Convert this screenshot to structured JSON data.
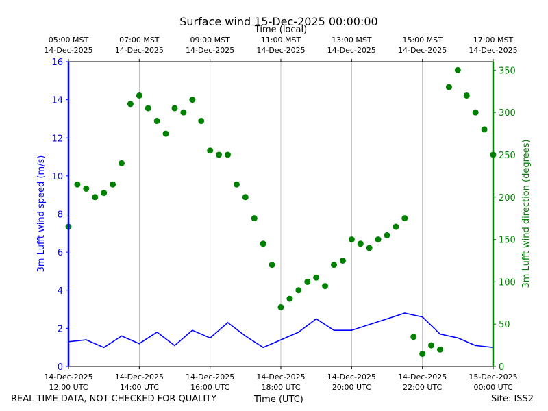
{
  "chart_data": {
    "type": "line+scatter",
    "title": "Surface wind 15-Dec-2025 00:00:00",
    "top_axis_label": "Time (local)",
    "xlabel": "Time (UTC)",
    "ylabel_left": "3m Lufft wind speed (m/s)",
    "ylabel_right": "3m Lufft wind direction (degrees)",
    "colors": {
      "speed": "#0000ff",
      "direction": "#008000",
      "grid": "#b0b0b0"
    },
    "x_unit": "hours since 14-Dec-2025 12:00 UTC",
    "xlim": [
      0,
      12
    ],
    "ylim_left": [
      0,
      16
    ],
    "ylim_right": [
      0,
      360
    ],
    "yticks_left": [
      "0",
      "2",
      "4",
      "6",
      "8",
      "10",
      "12",
      "14",
      "16"
    ],
    "yticks_right": [
      "0",
      "50",
      "100",
      "150",
      "200",
      "250",
      "300",
      "350"
    ],
    "bottom_ticks": [
      {
        "date": "14-Dec-2025",
        "time": "12:00 UTC"
      },
      {
        "date": "14-Dec-2025",
        "time": "14:00 UTC"
      },
      {
        "date": "14-Dec-2025",
        "time": "16:00 UTC"
      },
      {
        "date": "14-Dec-2025",
        "time": "18:00 UTC"
      },
      {
        "date": "14-Dec-2025",
        "time": "20:00 UTC"
      },
      {
        "date": "14-Dec-2025",
        "time": "22:00 UTC"
      },
      {
        "date": "15-Dec-2025",
        "time": "00:00 UTC"
      }
    ],
    "top_ticks": [
      {
        "time": "05:00 MST",
        "date": "14-Dec-2025"
      },
      {
        "time": "07:00 MST",
        "date": "14-Dec-2025"
      },
      {
        "time": "09:00 MST",
        "date": "14-Dec-2025"
      },
      {
        "time": "11:00 MST",
        "date": "14-Dec-2025"
      },
      {
        "time": "13:00 MST",
        "date": "14-Dec-2025"
      },
      {
        "time": "15:00 MST",
        "date": "14-Dec-2025"
      },
      {
        "time": "17:00 MST",
        "date": "14-Dec-2025"
      }
    ],
    "speed_series": {
      "name": "3m Lufft wind speed",
      "x": [
        0,
        0.5,
        1,
        1.5,
        2,
        2.5,
        3,
        3.5,
        4,
        4.5,
        5,
        5.5,
        6,
        6.5,
        7,
        7.5,
        8,
        8.5,
        9,
        9.5,
        10,
        10.5,
        11,
        11.5,
        12
      ],
      "y": [
        1.3,
        1.4,
        1.0,
        1.6,
        1.2,
        1.8,
        1.1,
        1.9,
        1.5,
        2.3,
        1.6,
        1.0,
        1.4,
        1.8,
        2.5,
        1.9,
        1.9,
        2.2,
        2.5,
        2.8,
        2.6,
        1.7,
        1.5,
        1.1,
        1.0
      ]
    },
    "direction_series": {
      "name": "3m Lufft wind direction",
      "x": [
        0,
        0.25,
        0.5,
        0.75,
        1,
        1.25,
        1.5,
        1.75,
        2,
        2.25,
        2.5,
        2.75,
        3,
        3.25,
        3.5,
        3.75,
        4,
        4.25,
        4.5,
        4.75,
        5,
        5.25,
        5.5,
        5.75,
        6,
        6.25,
        6.5,
        6.75,
        7,
        7.25,
        7.5,
        7.75,
        8,
        8.25,
        8.5,
        8.75,
        9,
        9.25,
        9.5,
        9.75,
        10,
        10.25,
        10.5,
        10.75,
        11,
        11.25,
        11.5,
        11.75,
        12
      ],
      "y": [
        165,
        215,
        210,
        200,
        205,
        215,
        240,
        310,
        320,
        305,
        290,
        275,
        305,
        300,
        315,
        290,
        255,
        250,
        250,
        215,
        200,
        175,
        145,
        120,
        70,
        80,
        90,
        100,
        105,
        95,
        120,
        125,
        150,
        145,
        140,
        150,
        155,
        165,
        175,
        35,
        15,
        25,
        20,
        330,
        350,
        320,
        300,
        280,
        250
      ]
    }
  },
  "footer": {
    "left": "REAL TIME DATA, NOT CHECKED FOR QUALITY",
    "center": "Time (UTC)",
    "right": "Site: ISS2"
  }
}
